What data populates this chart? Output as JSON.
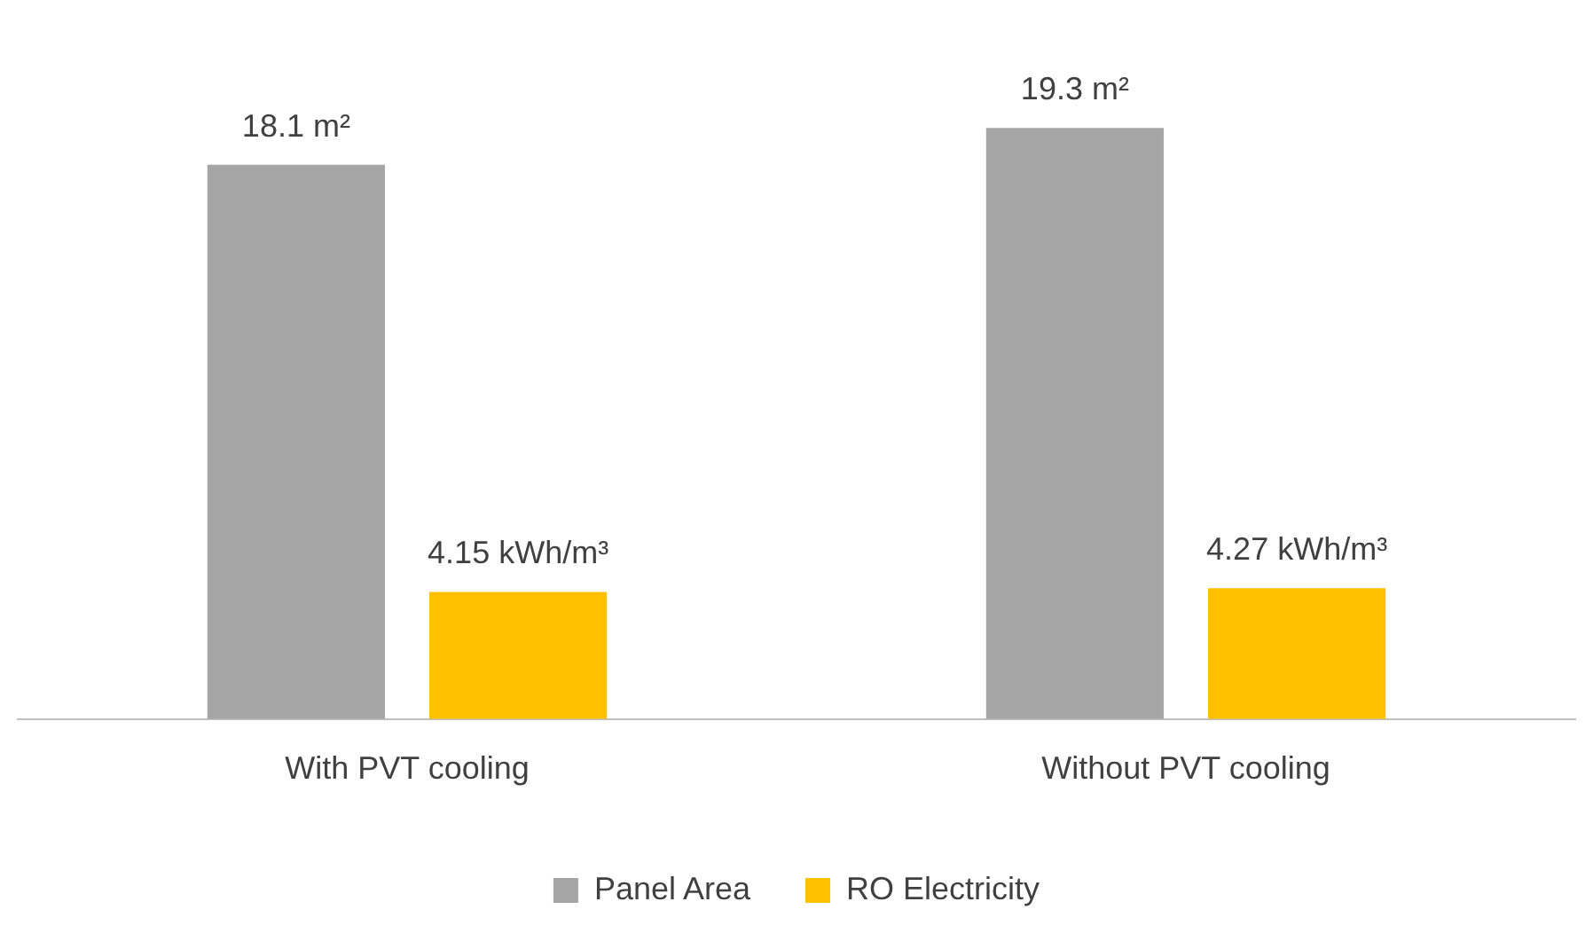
{
  "chart_data": {
    "type": "bar",
    "categories": [
      "With PVT cooling",
      "Without PVT cooling"
    ],
    "series": [
      {
        "name": "Panel Area",
        "color": "#a5a5a5",
        "values": [
          18.1,
          19.3
        ],
        "value_labels": [
          "18.1 m²",
          "19.3 m²"
        ]
      },
      {
        "name": "RO Electricity",
        "color": "#ffc000",
        "values": [
          4.15,
          4.27
        ],
        "value_labels": [
          "4.15 kWh/m³",
          "4.27 kWh/m³"
        ]
      }
    ],
    "tick_labels": "x",
    "grid": false,
    "legend": "bottom"
  }
}
